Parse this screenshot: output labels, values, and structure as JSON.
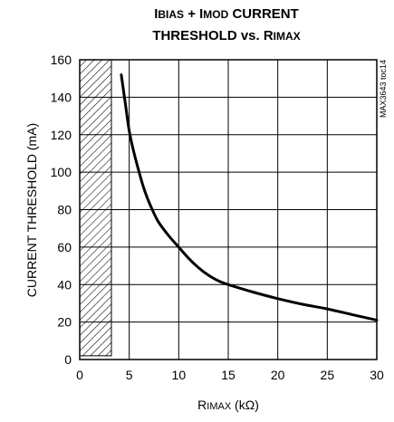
{
  "chart_data": {
    "type": "line",
    "title_line1": {
      "a": "I",
      "a_sc": "BIAS",
      "b": " + I",
      "b_sc": "MOD",
      "c": " CURRENT"
    },
    "title_line2": {
      "a": "THRESHOLD vs. R",
      "a_sc": "IMAX"
    },
    "xlabel": {
      "main": "R",
      "sc": "IMAX",
      "unit": " (kΩ)"
    },
    "ylabel": "CURRENT THRESHOLD (mA)",
    "side_id": "MAX3643 toc14",
    "xlim": [
      0,
      30
    ],
    "ylim": [
      0,
      160
    ],
    "x_ticks": [
      "0",
      "5",
      "10",
      "15",
      "20",
      "25",
      "30"
    ],
    "y_ticks": [
      "0",
      "20",
      "40",
      "60",
      "80",
      "100",
      "120",
      "140",
      "160"
    ],
    "grid": true,
    "hatched_region": {
      "x_start": 0,
      "x_end": 3.2,
      "y_start": 2,
      "y_end": 160
    },
    "series": [
      {
        "x": [
          4.2,
          4.6,
          5.0,
          5.5,
          6.0,
          6.5,
          7.0,
          7.5,
          8.0,
          9.0,
          10.0,
          11.0,
          12.0,
          13.0,
          14.0,
          15.0,
          17.5,
          20.0,
          22.5,
          25.0,
          27.5,
          30.0
        ],
        "y": [
          152,
          137,
          122,
          110,
          100,
          91,
          84,
          78,
          73,
          66,
          60,
          54,
          49,
          45,
          42,
          40,
          36,
          32.5,
          29.5,
          27,
          24,
          21
        ]
      }
    ]
  }
}
